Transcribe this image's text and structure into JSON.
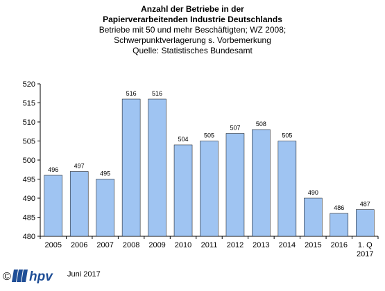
{
  "header": {
    "title_line1": "Anzahl der Betriebe in der",
    "title_line2": "Papierverarbeitenden Industrie Deutschlands",
    "subtitle_line1": "Betriebe mit 50 und mehr Beschäftigten; WZ 2008;",
    "subtitle_line2": "Schwerpunktverlagerung s. Vorbemerkung",
    "source": "Quelle: Statistisches Bundesamt"
  },
  "chart_data": {
    "type": "bar",
    "categories": [
      "2005",
      "2006",
      "2007",
      "2008",
      "2009",
      "2010",
      "2011",
      "2012",
      "2013",
      "2014",
      "2015",
      "2016",
      "1. Q 2017"
    ],
    "values": [
      496,
      497,
      495,
      516,
      516,
      504,
      505,
      507,
      508,
      505,
      490,
      486,
      487
    ],
    "data_labels": [
      "496",
      "497",
      "495",
      "516",
      "516",
      "504",
      "505",
      "507",
      "508",
      "505",
      "490",
      "486",
      "487"
    ],
    "title": "Anzahl der Betriebe in der Papierverarbeitenden Industrie Deutschlands",
    "ylim": [
      480,
      520
    ],
    "yticks": [
      480,
      485,
      490,
      495,
      500,
      505,
      510,
      515,
      520
    ],
    "bar_color": "#9fc4f2",
    "grid": false
  },
  "footer": {
    "copyright": "©",
    "logo_text": "hpv",
    "date": "Juni 2017",
    "logo_color": "#1f4e96"
  }
}
